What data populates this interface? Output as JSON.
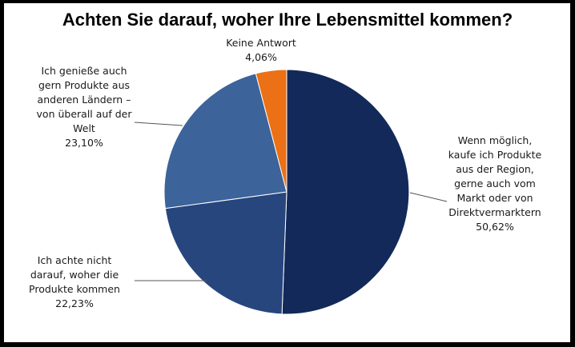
{
  "chart_data": {
    "type": "pie",
    "title": "Achten Sie darauf, woher Ihre Lebensmittel kommen?",
    "start": "12 o'clock, clockwise",
    "slices": [
      {
        "label_lines": [
          "Wenn möglich,",
          "kaufe ich Produkte",
          "aus der Region,",
          "gerne auch vom",
          "Markt oder von",
          "Direktvermarktern"
        ],
        "value_text": "50,62%",
        "value": 50.62,
        "color": "#13295a"
      },
      {
        "label_lines": [
          "Ich achte nicht",
          "darauf, woher die",
          "Produkte kommen"
        ],
        "value_text": "22,23%",
        "value": 22.23,
        "color": "#26467d"
      },
      {
        "label_lines": [
          "Ich genieße auch",
          "gern Produkte aus",
          "anderen Ländern –",
          "von überall auf der",
          "Welt"
        ],
        "value_text": "23,10%",
        "value": 23.1,
        "color": "#3c639a"
      },
      {
        "label_lines": [
          "Keine Antwort"
        ],
        "value_text": "4,06%",
        "value": 4.06,
        "color": "#ec7015"
      }
    ]
  }
}
